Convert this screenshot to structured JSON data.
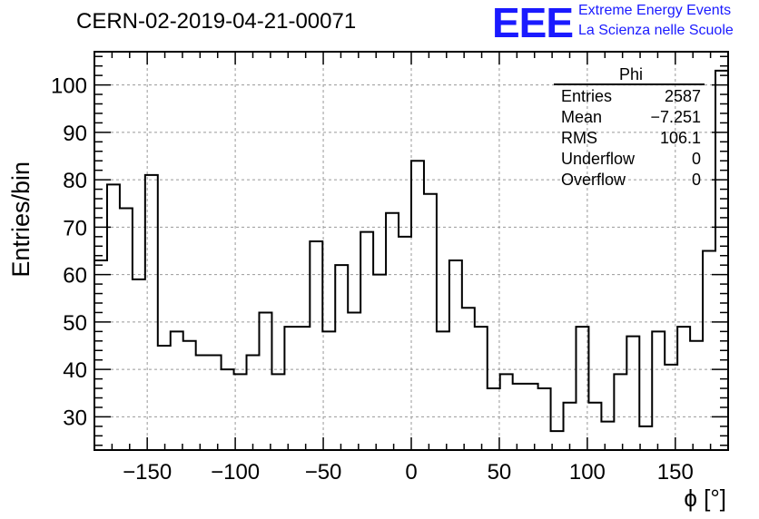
{
  "header": {
    "title": "CERN-02-2019-04-21-00071"
  },
  "logo": {
    "mark": "EEE",
    "line1": "Extreme Energy Events",
    "line2": "La Scienza nelle Scuole"
  },
  "stats": {
    "name": "Phi",
    "rows": [
      {
        "key": "Entries",
        "value": "2587"
      },
      {
        "key": "Mean",
        "value": "−7.251"
      },
      {
        "key": "RMS",
        "value": "106.1"
      },
      {
        "key": "Underflow",
        "value": "0"
      },
      {
        "key": "Overflow",
        "value": "0"
      }
    ]
  },
  "chart_data": {
    "type": "histogram",
    "title": "CERN-02-2019-04-21-00071",
    "xlabel": "ϕ [°]",
    "ylabel": "Entries/bin",
    "xlim": [
      -180,
      180
    ],
    "ylim": [
      23,
      107
    ],
    "bin_width": 7.2,
    "xticks": [
      -150,
      -100,
      -50,
      0,
      50,
      100,
      150
    ],
    "yticks": [
      30,
      40,
      50,
      60,
      70,
      80,
      90,
      100
    ],
    "grid": true,
    "values": [
      63,
      79,
      74,
      59,
      81,
      45,
      48,
      46,
      43,
      43,
      40,
      39,
      43,
      52,
      39,
      49,
      49,
      67,
      48,
      62,
      52,
      69,
      60,
      73,
      68,
      84,
      77,
      48,
      63,
      53,
      49,
      36,
      39,
      37,
      37,
      36,
      27,
      33,
      49,
      33,
      29,
      39,
      47,
      28,
      48,
      41,
      49,
      46,
      65,
      103
    ]
  }
}
